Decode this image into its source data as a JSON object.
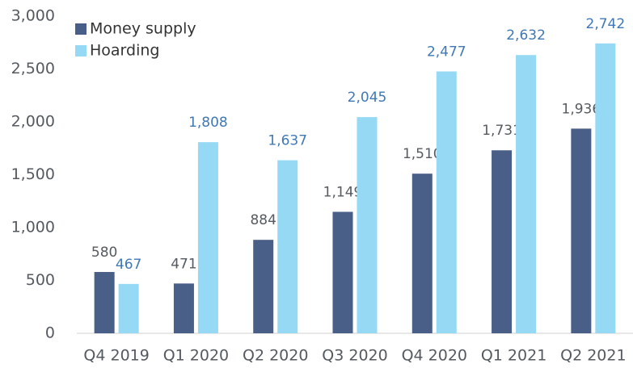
{
  "chart_data": {
    "type": "bar",
    "categories": [
      "Q4 2019",
      "Q1 2020",
      "Q2 2020",
      "Q3 2020",
      "Q4 2020",
      "Q1 2021",
      "Q2 2021"
    ],
    "series": [
      {
        "name": "Money supply",
        "color": "#4a5f88",
        "label_color": "#555a60",
        "values": [
          580,
          471,
          884,
          1149,
          1510,
          1731,
          1936
        ],
        "value_labels": [
          "580",
          "471",
          "884",
          "1,149",
          "1,510",
          "1,731",
          "1,936"
        ]
      },
      {
        "name": "Hoarding",
        "color": "#96d9f5",
        "label_color": "#3f78b5",
        "values": [
          467,
          1808,
          1637,
          2045,
          2477,
          2632,
          2742
        ],
        "value_labels": [
          "467",
          "1,808",
          "1,637",
          "2,045",
          "2,477",
          "2,632",
          "2,742"
        ]
      }
    ],
    "ylim": [
      0,
      3000
    ],
    "yticks": [
      0,
      500,
      {
        "value": 1000,
        "label": "1,000"
      },
      {
        "value": 1500,
        "label": "1,500"
      },
      {
        "value": 2000,
        "label": "2,000"
      },
      {
        "value": 2500,
        "label": "2,500"
      },
      {
        "value": 3000,
        "label": "3,000"
      }
    ],
    "grid": false,
    "legend": "top-left"
  }
}
